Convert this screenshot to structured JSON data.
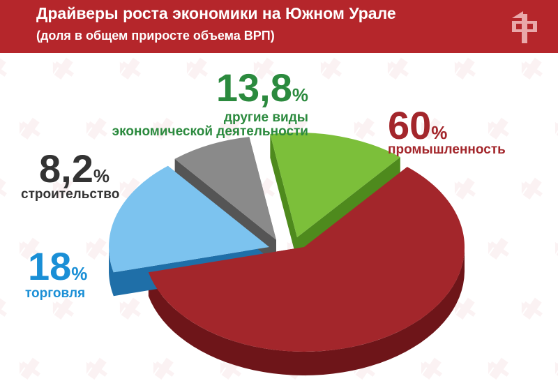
{
  "header": {
    "title": "Драйверы роста экономики на Южном Урале",
    "subtitle": "(доля в общем приросте объема ВРП)"
  },
  "colors": {
    "banner": "#b5262b",
    "background": "#ffffff"
  },
  "chart_data": {
    "type": "pie",
    "title": "Драйверы роста экономики на Южном Урале",
    "subtitle": "(доля в общем приросте объема ВРП)",
    "unit": "%",
    "slices": [
      {
        "label": "промышленность",
        "value": 60,
        "value_text": "60",
        "color_top": "#a3262b",
        "color_side": "#6e1519",
        "label_color": "#a3262b",
        "exploded": true
      },
      {
        "label": "торговля",
        "value": 18,
        "value_text": "18",
        "color_top": "#7cc3ef",
        "color_side": "#1f6fa8",
        "label_color": "#1a8fd6",
        "exploded": false
      },
      {
        "label": "строительство",
        "value": 8.2,
        "value_text": "8,2",
        "color_top": "#8a8a8a",
        "color_side": "#555555",
        "label_color": "#333333",
        "exploded": false
      },
      {
        "label": "другие виды экономической деятельности",
        "label_lines": [
          "другие виды",
          "экономической деятельности"
        ],
        "value": 13.8,
        "value_text": "13,8",
        "color_top": "#7cbf3a",
        "color_side": "#4e8a1d",
        "label_color": "#2b8a3e",
        "exploded": false
      }
    ]
  }
}
